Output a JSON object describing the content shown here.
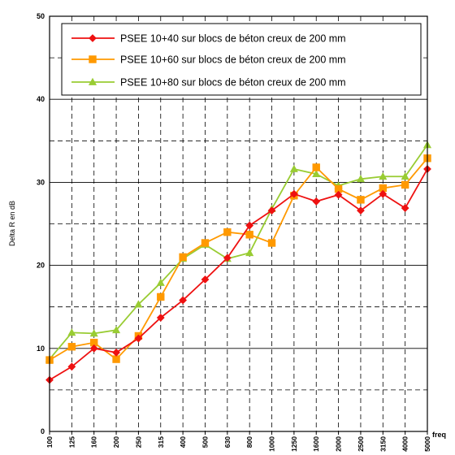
{
  "chart_data": {
    "type": "line",
    "title": "",
    "ylabel": "Delta R en dB",
    "xlabel": "freq",
    "ylim": [
      0,
      50
    ],
    "yticks": [
      0,
      10,
      20,
      30,
      40,
      50
    ],
    "grid": true,
    "legend_position": "top",
    "categories": [
      "100",
      "125",
      "160",
      "200",
      "250",
      "315",
      "400",
      "500",
      "630",
      "800",
      "1000",
      "1250",
      "1600",
      "2000",
      "2500",
      "3150",
      "4000",
      "5000"
    ],
    "series": [
      {
        "name": "PSEE 10+40 sur  blocs de béton creux de 200 mm",
        "color": "#ee1111",
        "marker": "diamond",
        "values": [
          6.2,
          7.8,
          10.0,
          9.5,
          11.2,
          13.7,
          15.8,
          18.3,
          20.9,
          24.8,
          26.6,
          28.6,
          27.7,
          28.5,
          26.6,
          28.6,
          26.9,
          31.6
        ]
      },
      {
        "name": "PSEE 10+60 sur blocs de béton creux de 200 mm",
        "color": "#ff9900",
        "marker": "square",
        "values": [
          8.6,
          10.2,
          10.7,
          8.7,
          11.5,
          16.2,
          21.0,
          22.7,
          24.0,
          23.7,
          22.7,
          28.4,
          31.8,
          29.2,
          27.9,
          29.3,
          29.7,
          32.9
        ]
      },
      {
        "name": "PSEE 10+80 sur blocs de béton creux de 200 mm",
        "color": "#99cc33",
        "marker": "triangle",
        "values": [
          8.7,
          11.9,
          11.8,
          12.2,
          15.3,
          17.9,
          20.8,
          22.5,
          20.8,
          21.5,
          26.8,
          31.6,
          31.0,
          29.6,
          30.4,
          30.7,
          30.7,
          34.5
        ]
      }
    ]
  }
}
